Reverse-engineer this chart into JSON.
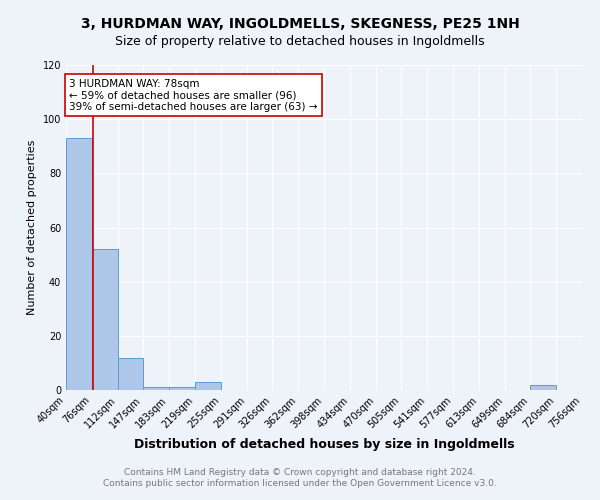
{
  "title": "3, HURDMAN WAY, INGOLDMELLS, SKEGNESS, PE25 1NH",
  "subtitle": "Size of property relative to detached houses in Ingoldmells",
  "xlabel": "Distribution of detached houses by size in Ingoldmells",
  "ylabel": "Number of detached properties",
  "annotation_line1": "3 HURDMAN WAY: 78sqm",
  "annotation_line2": "← 59% of detached houses are smaller (96)",
  "annotation_line3": "39% of semi-detached houses are larger (63) →",
  "property_size": 78,
  "bin_edges": [
    40,
    76,
    112,
    147,
    183,
    219,
    255,
    291,
    326,
    362,
    398,
    434,
    470,
    505,
    541,
    577,
    613,
    649,
    684,
    720,
    756
  ],
  "bar_heights": [
    93,
    52,
    12,
    1,
    1,
    3,
    0,
    0,
    0,
    0,
    0,
    0,
    0,
    0,
    0,
    0,
    0,
    0,
    2,
    0
  ],
  "bar_color": "#aec6e8",
  "bar_edge_color": "#5b9bd5",
  "vline_color": "#cc0000",
  "vline_x": 78,
  "annotation_box_edge_color": "#cc0000",
  "annotation_box_face_color": "#ffffff",
  "annotation_fontsize": 7.5,
  "title_fontsize": 10,
  "subtitle_fontsize": 9,
  "xlabel_fontsize": 9,
  "ylabel_fontsize": 8,
  "tick_fontsize": 7,
  "footer_line1": "Contains HM Land Registry data © Crown copyright and database right 2024.",
  "footer_line2": "Contains public sector information licensed under the Open Government Licence v3.0.",
  "footer_fontsize": 6.5,
  "bg_color": "#eef2f9",
  "ylim": [
    0,
    120
  ],
  "yticks": [
    0,
    20,
    40,
    60,
    80,
    100,
    120
  ]
}
